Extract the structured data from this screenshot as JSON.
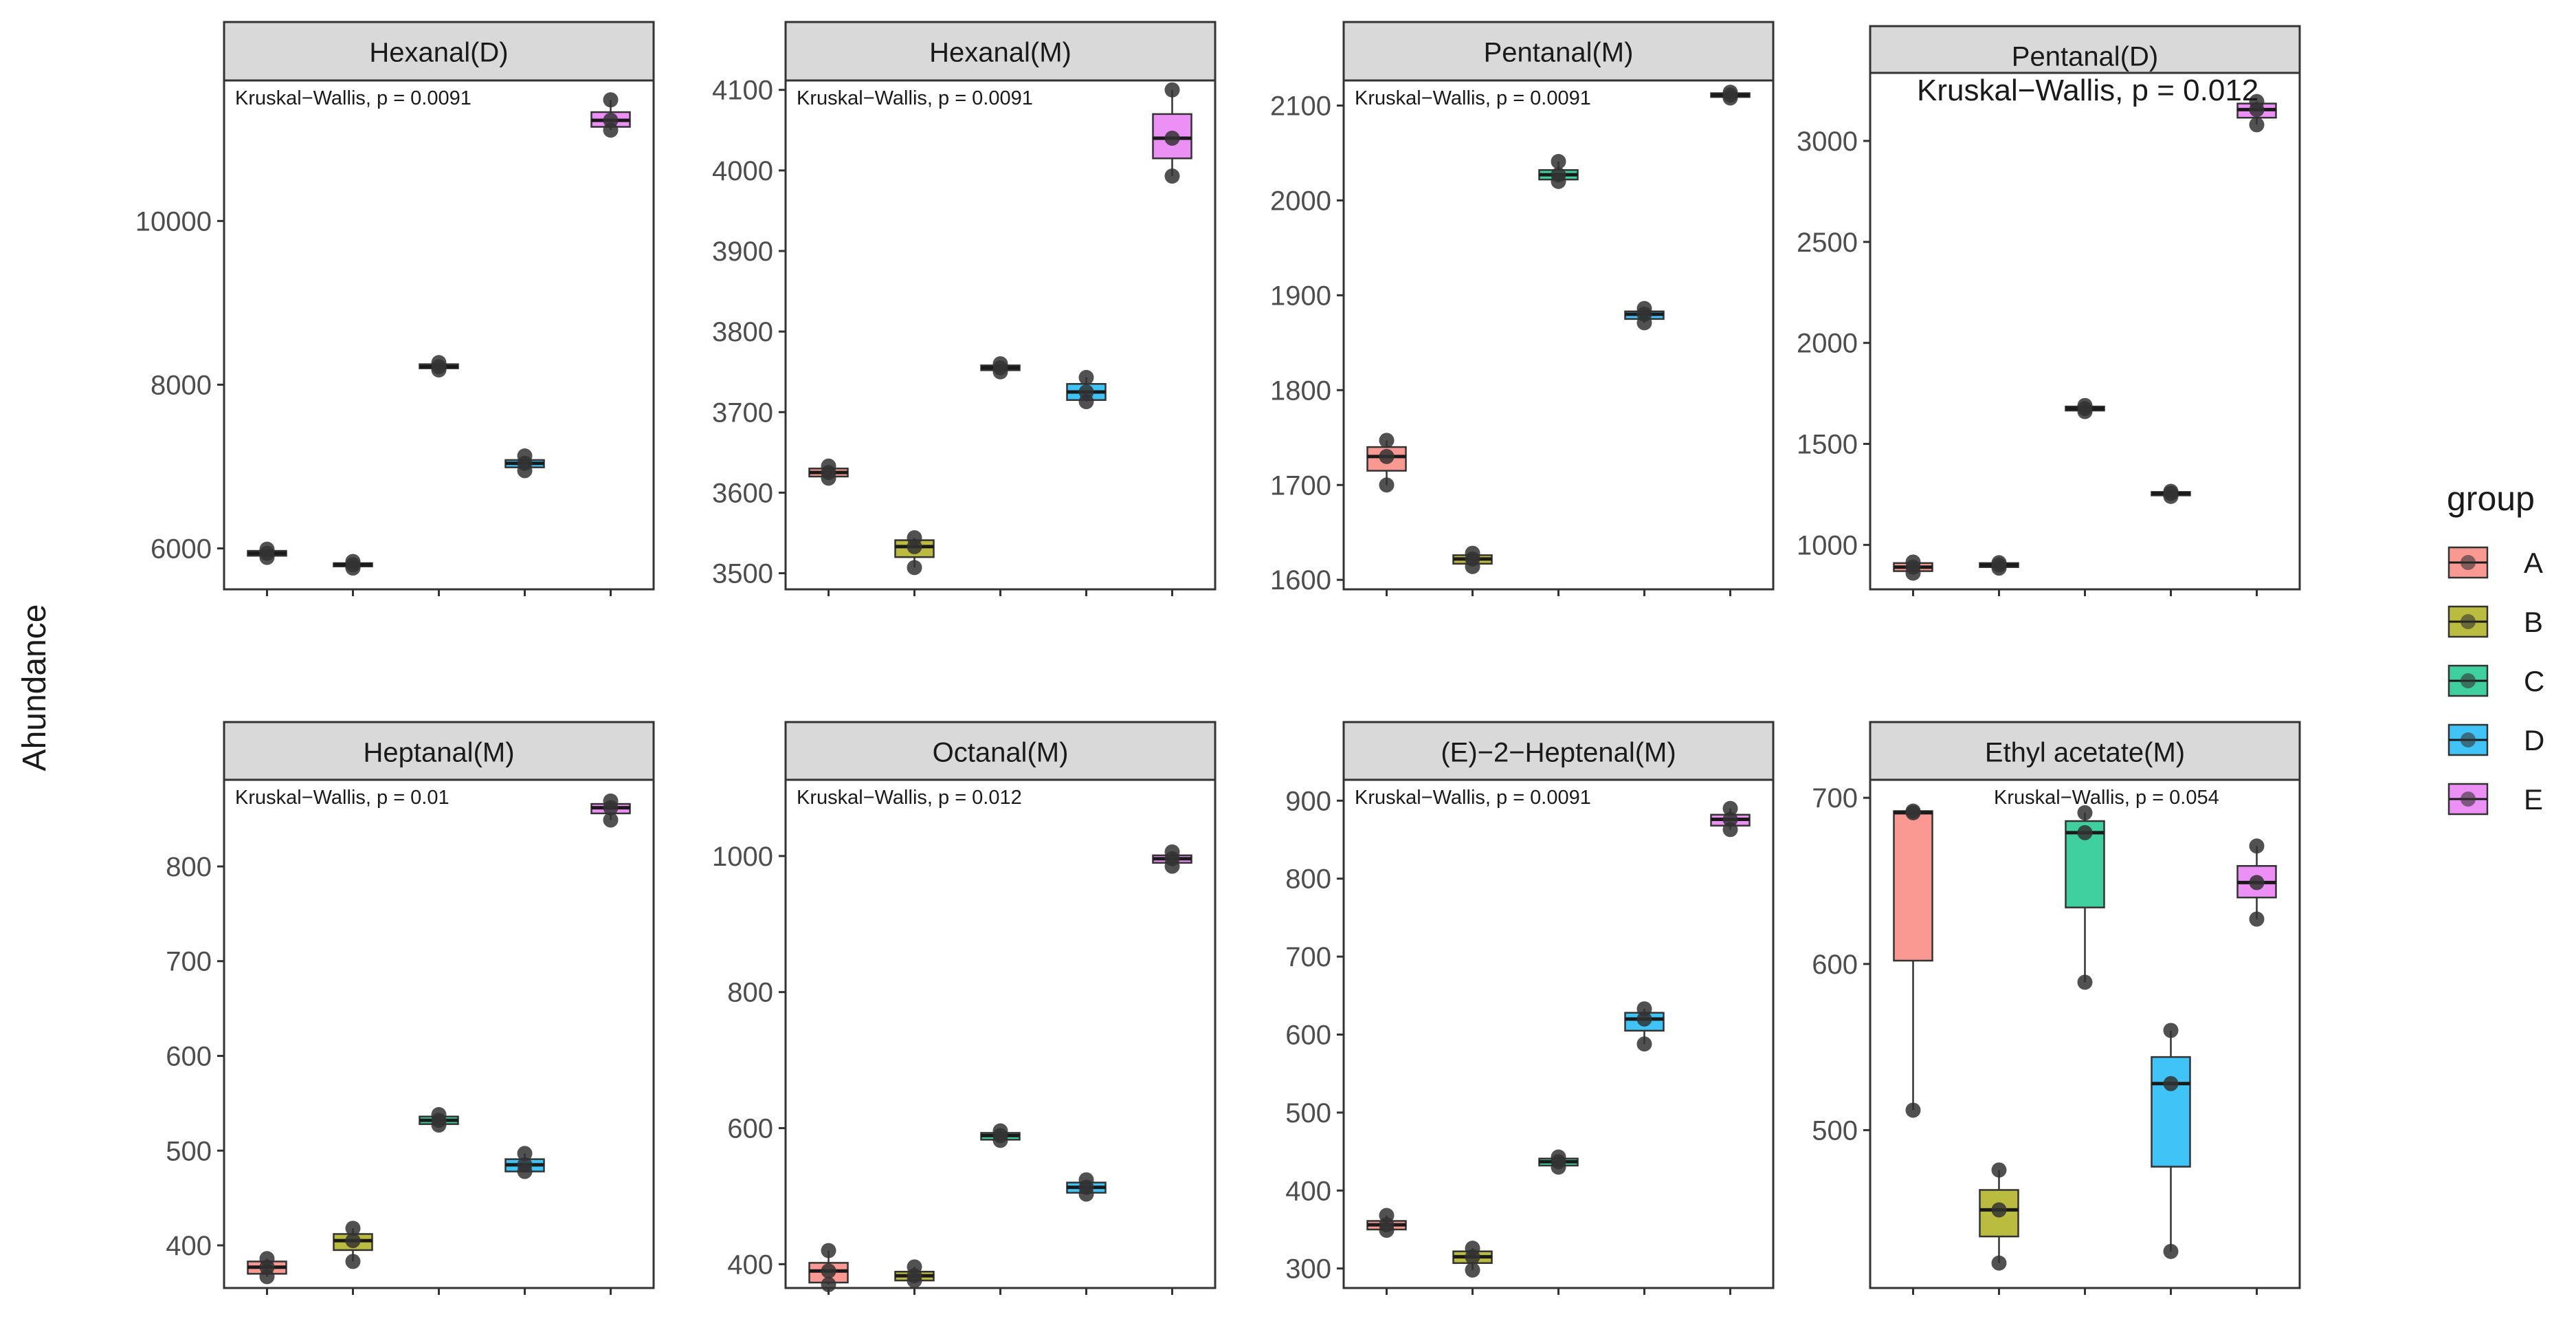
{
  "chart_data": {
    "type": "box",
    "ylabel": "Ahundance",
    "xlabel": "",
    "legend": {
      "title": "group",
      "placement": "right",
      "entries": [
        {
          "label": "A",
          "color": "#F8766D"
        },
        {
          "label": "B",
          "color": "#A3A500"
        },
        {
          "label": "C",
          "color": "#00BF7D"
        },
        {
          "label": "D",
          "color": "#00B0F6"
        },
        {
          "label": "E",
          "color": "#E76BF3"
        }
      ]
    },
    "panels": [
      {
        "title": "Hexanal(D)",
        "annotation": "Kruskal−Wallis, p = 0.0091",
        "ylim": [
          5500,
          11700
        ],
        "ticks": [
          6000,
          8000,
          10000
        ],
        "tick_labels": [
          "6000",
          "8000",
          "10000"
        ],
        "boxes": [
          {
            "group": "A",
            "q1": 5910,
            "median": 5940,
            "q3": 5970,
            "min": 5890,
            "max": 5990,
            "points": [
              5890,
              5940,
              5990
            ]
          },
          {
            "group": "B",
            "q1": 5780,
            "median": 5800,
            "q3": 5820,
            "min": 5760,
            "max": 5840,
            "points": [
              5760,
              5800,
              5840
            ]
          },
          {
            "group": "C",
            "q1": 8200,
            "median": 8220,
            "q3": 8250,
            "min": 8180,
            "max": 8270,
            "points": [
              8180,
              8220,
              8270
            ]
          },
          {
            "group": "D",
            "q1": 6990,
            "median": 7040,
            "q3": 7080,
            "min": 6950,
            "max": 7130,
            "points": [
              6950,
              7040,
              7130
            ]
          },
          {
            "group": "E",
            "q1": 11150,
            "median": 11230,
            "q3": 11330,
            "min": 11110,
            "max": 11480,
            "points": [
              11110,
              11230,
              11480
            ]
          }
        ]
      },
      {
        "title": "Hexanal(M)",
        "annotation": "Kruskal−Wallis, p = 0.0091",
        "ylim": [
          3480,
          4110
        ],
        "ticks": [
          3500,
          3600,
          3700,
          3800,
          3900,
          4000,
          4100
        ],
        "tick_labels": [
          "3500",
          "3600",
          "3700",
          "3800",
          "3900",
          "4000",
          "4100"
        ],
        "boxes": [
          {
            "group": "A",
            "q1": 3620,
            "median": 3625,
            "q3": 3630,
            "min": 3618,
            "max": 3633,
            "points": [
              3618,
              3625,
              3633
            ]
          },
          {
            "group": "B",
            "q1": 3520,
            "median": 3533,
            "q3": 3541,
            "min": 3507,
            "max": 3544,
            "points": [
              3507,
              3533,
              3544
            ]
          },
          {
            "group": "C",
            "q1": 3752,
            "median": 3755,
            "q3": 3758,
            "min": 3750,
            "max": 3760,
            "points": [
              3750,
              3755,
              3760
            ]
          },
          {
            "group": "D",
            "q1": 3715,
            "median": 3725,
            "q3": 3735,
            "min": 3713,
            "max": 3743,
            "points": [
              3713,
              3725,
              3743
            ]
          },
          {
            "group": "E",
            "q1": 4015,
            "median": 4040,
            "q3": 4070,
            "min": 3993,
            "max": 4100,
            "points": [
              3993,
              4040,
              4100
            ]
          }
        ]
      },
      {
        "title": "Pentanal(M)",
        "annotation": "Kruskal−Wallis, p = 0.0091",
        "ylim": [
          1590,
          2125
        ],
        "ticks": [
          1600,
          1700,
          1800,
          1900,
          2000,
          2100
        ],
        "tick_labels": [
          "1600",
          "1700",
          "1800",
          "1900",
          "2000",
          "2100"
        ],
        "boxes": [
          {
            "group": "A",
            "q1": 1715,
            "median": 1730,
            "q3": 1740,
            "min": 1700,
            "max": 1747,
            "points": [
              1700,
              1730,
              1747
            ]
          },
          {
            "group": "B",
            "q1": 1617,
            "median": 1622,
            "q3": 1626,
            "min": 1614,
            "max": 1628,
            "points": [
              1614,
              1622,
              1628
            ]
          },
          {
            "group": "C",
            "q1": 2022,
            "median": 2027,
            "q3": 2032,
            "min": 2020,
            "max": 2041,
            "points": [
              2020,
              2027,
              2041
            ]
          },
          {
            "group": "D",
            "q1": 1875,
            "median": 1880,
            "q3": 1883,
            "min": 1871,
            "max": 1886,
            "points": [
              1871,
              1880,
              1886
            ]
          },
          {
            "group": "E",
            "q1": 2109,
            "median": 2111,
            "q3": 2113,
            "min": 2108,
            "max": 2114,
            "points": [
              2108,
              2111,
              2114
            ]
          }
        ]
      },
      {
        "title": "Pentanal(D)",
        "annotation": "Kruskal−Wallis, p = 0.012",
        "annotation_style": "large",
        "ylim": [
          780,
          3330
        ],
        "ticks": [
          1000,
          1500,
          2000,
          2500,
          3000
        ],
        "tick_labels": [
          "1000",
          "1500",
          "2000",
          "2500",
          "3000"
        ],
        "boxes": [
          {
            "group": "A",
            "q1": 870,
            "median": 890,
            "q3": 910,
            "min": 860,
            "max": 915,
            "points": [
              860,
              890,
              915
            ]
          },
          {
            "group": "B",
            "q1": 890,
            "median": 900,
            "q3": 910,
            "min": 885,
            "max": 912,
            "points": [
              885,
              900,
              912
            ]
          },
          {
            "group": "C",
            "q1": 1665,
            "median": 1675,
            "q3": 1685,
            "min": 1660,
            "max": 1690,
            "points": [
              1660,
              1675,
              1690
            ]
          },
          {
            "group": "D",
            "q1": 1245,
            "median": 1255,
            "q3": 1262,
            "min": 1240,
            "max": 1265,
            "points": [
              1240,
              1255,
              1265
            ]
          },
          {
            "group": "E",
            "q1": 3115,
            "median": 3155,
            "q3": 3185,
            "min": 3080,
            "max": 3195,
            "points": [
              3080,
              3155,
              3195
            ]
          }
        ]
      },
      {
        "title": "Heptanal(M)",
        "annotation": "Kruskal−Wallis, p = 0.01",
        "ylim": [
          355,
          890
        ],
        "ticks": [
          400,
          500,
          600,
          700,
          800
        ],
        "tick_labels": [
          "400",
          "500",
          "600",
          "700",
          "800"
        ],
        "boxes": [
          {
            "group": "A",
            "q1": 370,
            "median": 377,
            "q3": 383,
            "min": 367,
            "max": 386,
            "points": [
              367,
              377,
              386
            ]
          },
          {
            "group": "B",
            "q1": 395,
            "median": 405,
            "q3": 412,
            "min": 383,
            "max": 418,
            "points": [
              383,
              405,
              418
            ]
          },
          {
            "group": "C",
            "q1": 528,
            "median": 532,
            "q3": 536,
            "min": 527,
            "max": 538,
            "points": [
              527,
              532,
              538
            ]
          },
          {
            "group": "D",
            "q1": 478,
            "median": 485,
            "q3": 491,
            "min": 478,
            "max": 497,
            "points": [
              478,
              485,
              497
            ]
          },
          {
            "group": "E",
            "q1": 856,
            "median": 862,
            "q3": 866,
            "min": 849,
            "max": 869,
            "points": [
              849,
              862,
              869
            ]
          }
        ]
      },
      {
        "title": "Octanal(M)",
        "annotation": "Kruskal−Wallis, p = 0.012",
        "ylim": [
          365,
          1110
        ],
        "ticks": [
          400,
          600,
          800,
          1000
        ],
        "tick_labels": [
          "400",
          "600",
          "800",
          "1000"
        ],
        "boxes": [
          {
            "group": "A",
            "q1": 373,
            "median": 390,
            "q3": 402,
            "min": 370,
            "max": 420,
            "points": [
              370,
              390,
              420
            ]
          },
          {
            "group": "B",
            "q1": 376,
            "median": 383,
            "q3": 389,
            "min": 376,
            "max": 396,
            "points": [
              376,
              383,
              396
            ]
          },
          {
            "group": "C",
            "q1": 583,
            "median": 589,
            "q3": 593,
            "min": 582,
            "max": 596,
            "points": [
              582,
              589,
              596
            ]
          },
          {
            "group": "D",
            "q1": 505,
            "median": 513,
            "q3": 520,
            "min": 503,
            "max": 524,
            "points": [
              503,
              513,
              524
            ]
          },
          {
            "group": "E",
            "q1": 990,
            "median": 996,
            "q3": 1001,
            "min": 985,
            "max": 1006,
            "points": [
              985,
              996,
              1006
            ]
          }
        ]
      },
      {
        "title": "(E)−2−Heptenal(M)",
        "annotation": "Kruskal−Wallis, p = 0.0091",
        "ylim": [
          275,
          925
        ],
        "ticks": [
          300,
          400,
          500,
          600,
          700,
          800,
          900
        ],
        "tick_labels": [
          "300",
          "400",
          "500",
          "600",
          "700",
          "800",
          "900"
        ],
        "boxes": [
          {
            "group": "A",
            "q1": 350,
            "median": 356,
            "q3": 361,
            "min": 349,
            "max": 368,
            "points": [
              349,
              356,
              368
            ]
          },
          {
            "group": "B",
            "q1": 307,
            "median": 315,
            "q3": 322,
            "min": 298,
            "max": 326,
            "points": [
              298,
              315,
              326
            ]
          },
          {
            "group": "C",
            "q1": 432,
            "median": 437,
            "q3": 441,
            "min": 430,
            "max": 443,
            "points": [
              430,
              437,
              443
            ]
          },
          {
            "group": "D",
            "q1": 605,
            "median": 620,
            "q3": 628,
            "min": 588,
            "max": 633,
            "points": [
              588,
              620,
              633
            ]
          },
          {
            "group": "E",
            "q1": 868,
            "median": 876,
            "q3": 882,
            "min": 863,
            "max": 890,
            "points": [
              863,
              876,
              890
            ]
          }
        ]
      },
      {
        "title": "Ethyl acetate(M)",
        "annotation": "Kruskal−Wallis, p = 0.054",
        "ylim": [
          405,
          710
        ],
        "ticks": [
          500,
          600,
          700
        ],
        "tick_labels": [
          "500",
          "600",
          "700"
        ],
        "boxes": [
          {
            "group": "A",
            "q1": 602,
            "median": 691,
            "q3": 692,
            "min": 512,
            "max": 692,
            "points": [
              512,
              691,
              692
            ]
          },
          {
            "group": "B",
            "q1": 436,
            "median": 452,
            "q3": 464,
            "min": 420,
            "max": 476,
            "points": [
              420,
              452,
              476
            ]
          },
          {
            "group": "C",
            "q1": 634,
            "median": 679,
            "q3": 686,
            "min": 589,
            "max": 691,
            "points": [
              589,
              679,
              691
            ]
          },
          {
            "group": "D",
            "q1": 478,
            "median": 528,
            "q3": 544,
            "min": 427,
            "max": 560,
            "points": [
              427,
              528,
              560
            ]
          },
          {
            "group": "E",
            "q1": 640,
            "median": 649,
            "q3": 659,
            "min": 627,
            "max": 671,
            "points": [
              627,
              649,
              671
            ]
          }
        ]
      }
    ]
  }
}
